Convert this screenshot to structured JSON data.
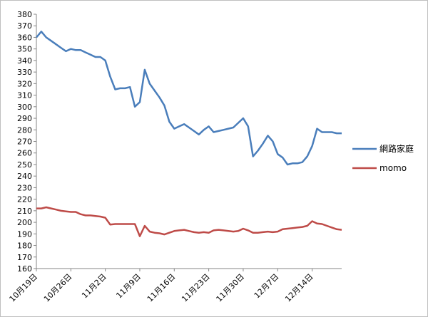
{
  "chart_data": {
    "type": "line",
    "title": "",
    "xlabel": "",
    "ylabel": "",
    "ylim": [
      160,
      380
    ],
    "y_ticks": [
      160,
      170,
      180,
      190,
      200,
      210,
      220,
      230,
      240,
      250,
      260,
      270,
      280,
      290,
      300,
      310,
      320,
      330,
      340,
      350,
      360,
      370,
      380
    ],
    "x_tick_labels": [
      "10月19日",
      "10月26日",
      "11月2日",
      "11月9日",
      "11月16日",
      "11月23日",
      "11月30日",
      "12月7日",
      "12月14日"
    ],
    "x_start": "10月19日",
    "x_end": "12月20日",
    "grid": false,
    "legend": "right",
    "series": [
      {
        "name": "網路家庭",
        "color": "#4a7ebb",
        "points": [
          [
            "10月19日",
            360
          ],
          [
            "10月20日",
            365
          ],
          [
            "10月21日",
            360
          ],
          [
            "10月22日",
            357
          ],
          [
            "10月23日",
            354
          ],
          [
            "10月24日",
            351
          ],
          [
            "10月25日",
            348
          ],
          [
            "10月26日",
            350
          ],
          [
            "10月27日",
            349
          ],
          [
            "10月28日",
            349
          ],
          [
            "10月29日",
            347
          ],
          [
            "10月30日",
            345
          ],
          [
            "10月31日",
            343
          ],
          [
            "11月1日",
            343
          ],
          [
            "11月2日",
            340
          ],
          [
            "11月3日",
            326
          ],
          [
            "11月4日",
            315
          ],
          [
            "11月5日",
            316
          ],
          [
            "11月6日",
            316
          ],
          [
            "11月7日",
            317
          ],
          [
            "11月8日",
            300
          ],
          [
            "11月9日",
            304
          ],
          [
            "11月10日",
            332
          ],
          [
            "11月11日",
            320
          ],
          [
            "11月12日",
            314
          ],
          [
            "11月13日",
            308
          ],
          [
            "11月14日",
            301
          ],
          [
            "11月15日",
            287
          ],
          [
            "11月16日",
            281
          ],
          [
            "11月17日",
            283
          ],
          [
            "11月18日",
            285
          ],
          [
            "11月19日",
            282
          ],
          [
            "11月20日",
            279
          ],
          [
            "11月21日",
            276
          ],
          [
            "11月22日",
            280
          ],
          [
            "11月23日",
            283
          ],
          [
            "11月24日",
            278
          ],
          [
            "11月25日",
            279
          ],
          [
            "11月26日",
            280
          ],
          [
            "11月27日",
            281
          ],
          [
            "11月28日",
            282
          ],
          [
            "11月29日",
            286
          ],
          [
            "11月30日",
            290
          ],
          [
            "12月1日",
            283
          ],
          [
            "12月2日",
            257
          ],
          [
            "12月3日",
            262
          ],
          [
            "12月4日",
            268
          ],
          [
            "12月5日",
            275
          ],
          [
            "12月6日",
            270
          ],
          [
            "12月7日",
            259
          ],
          [
            "12月8日",
            256
          ],
          [
            "12月9日",
            250
          ],
          [
            "12月10日",
            251
          ],
          [
            "12月11日",
            251
          ],
          [
            "12月12日",
            252
          ],
          [
            "12月13日",
            257
          ],
          [
            "12月14日",
            266
          ],
          [
            "12月15日",
            281
          ],
          [
            "12月16日",
            278
          ],
          [
            "12月17日",
            278
          ],
          [
            "12月18日",
            278
          ],
          [
            "12月19日",
            277
          ],
          [
            "12月20日",
            277
          ]
        ]
      },
      {
        "name": "momo",
        "color": "#be4b48",
        "points": [
          [
            "10月19日",
            212
          ],
          [
            "10月20日",
            212
          ],
          [
            "10月21日",
            213
          ],
          [
            "10月22日",
            212
          ],
          [
            "10月23日",
            211
          ],
          [
            "10月24日",
            210
          ],
          [
            "10月25日",
            209.5
          ],
          [
            "10月26日",
            209
          ],
          [
            "10月27日",
            209
          ],
          [
            "10月28日",
            207
          ],
          [
            "10月29日",
            206
          ],
          [
            "10月30日",
            206
          ],
          [
            "10月31日",
            205.5
          ],
          [
            "11月1日",
            205
          ],
          [
            "11月2日",
            204
          ],
          [
            "11月3日",
            198
          ],
          [
            "11月4日",
            198.5
          ],
          [
            "11月5日",
            198.5
          ],
          [
            "11月6日",
            198.5
          ],
          [
            "11月7日",
            198.5
          ],
          [
            "11月8日",
            198.5
          ],
          [
            "11月9日",
            188
          ],
          [
            "11月10日",
            197
          ],
          [
            "11月11日",
            192
          ],
          [
            "11月12日",
            191
          ],
          [
            "11月13日",
            190.5
          ],
          [
            "11月14日",
            189.5
          ],
          [
            "11月15日",
            191
          ],
          [
            "11月16日",
            192.5
          ],
          [
            "11月17日",
            193
          ],
          [
            "11月18日",
            193.5
          ],
          [
            "11月19日",
            192.5
          ],
          [
            "11月20日",
            191.5
          ],
          [
            "11月21日",
            191
          ],
          [
            "11月22日",
            191.5
          ],
          [
            "11月23日",
            191
          ],
          [
            "11月24日",
            193
          ],
          [
            "11月25日",
            193.5
          ],
          [
            "11月26日",
            193
          ],
          [
            "11月27日",
            192.5
          ],
          [
            "11月28日",
            192
          ],
          [
            "11月29日",
            192.5
          ],
          [
            "11月30日",
            194.5
          ],
          [
            "12月1日",
            193
          ],
          [
            "12月2日",
            191
          ],
          [
            "12月3日",
            191
          ],
          [
            "12月4日",
            191.5
          ],
          [
            "12月5日",
            192
          ],
          [
            "12月6日",
            191.5
          ],
          [
            "12月7日",
            192
          ],
          [
            "12月8日",
            194
          ],
          [
            "12月9日",
            194.5
          ],
          [
            "12月10日",
            195
          ],
          [
            "12月11日",
            195.5
          ],
          [
            "12月12日",
            196
          ],
          [
            "12月13日",
            197
          ],
          [
            "12月14日",
            201
          ],
          [
            "12月15日",
            199
          ],
          [
            "12月16日",
            198.5
          ],
          [
            "12月17日",
            197
          ],
          [
            "12月18日",
            195.5
          ],
          [
            "12月19日",
            194
          ],
          [
            "12月20日",
            193.5
          ]
        ]
      }
    ]
  }
}
